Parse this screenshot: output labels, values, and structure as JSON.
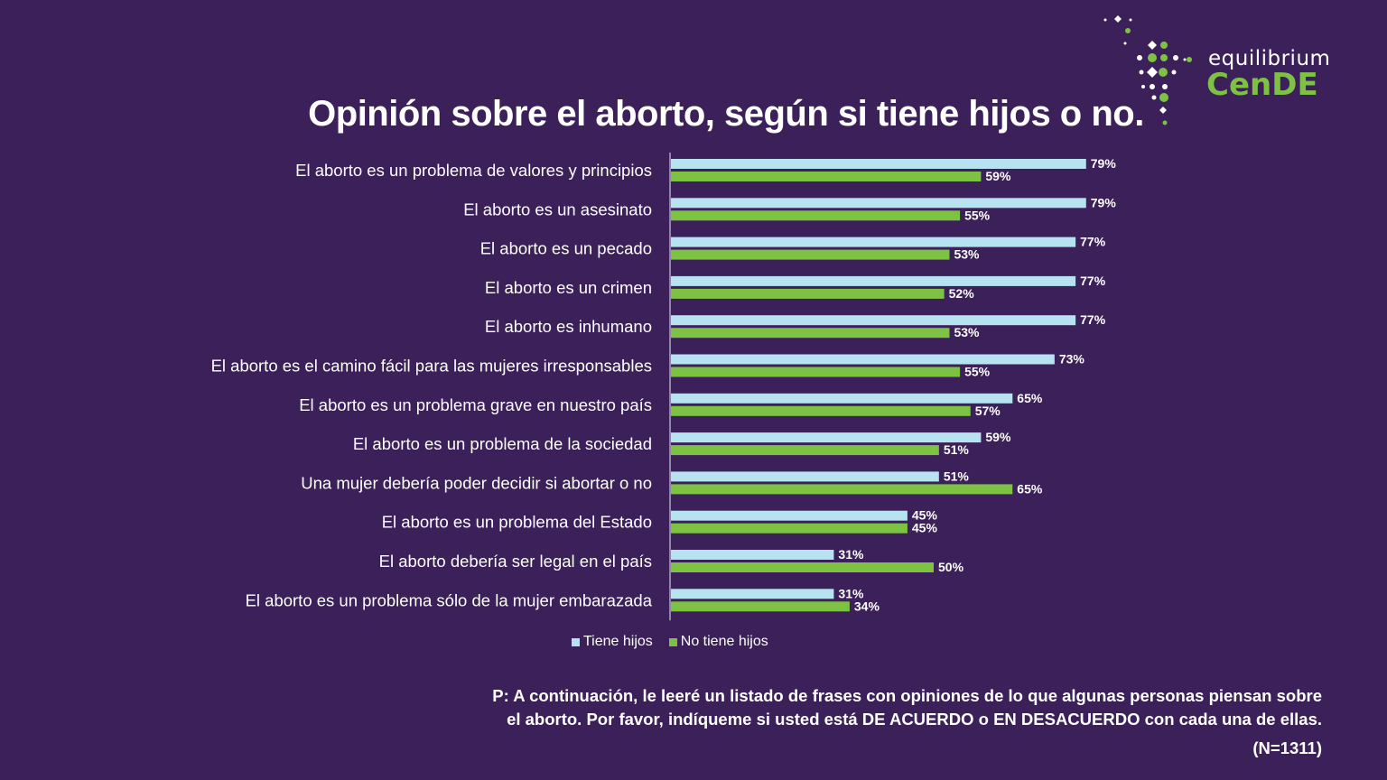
{
  "title": "Opinión sobre el aborto, según si tiene hijos o no.",
  "logo": {
    "top_text": "equilibrium",
    "bottom_text": "CenDE"
  },
  "colors": {
    "background": "#3b2059",
    "tiene_hijos": "#b7e2ef",
    "no_tiene_hijos": "#7dc242"
  },
  "chart_data": {
    "type": "bar",
    "orientation": "horizontal",
    "categories": [
      "El aborto es un problema de valores y principios",
      "El aborto es un asesinato",
      "El aborto es un pecado",
      "El aborto es un crimen",
      "El aborto es inhumano",
      "El aborto es el camino fácil para las mujeres irresponsables",
      "El aborto es un problema grave en nuestro país",
      "El aborto es un problema de la sociedad",
      "Una mujer debería poder decidir si abortar o no",
      "El aborto es un problema del Estado",
      "El aborto debería ser legal en el país",
      "El aborto es un problema sólo de la mujer embarazada"
    ],
    "series": [
      {
        "name": "Tiene hijos",
        "values": [
          79,
          79,
          77,
          77,
          77,
          73,
          65,
          59,
          51,
          45,
          31,
          31
        ],
        "labels": [
          "79%",
          "79%",
          "77%",
          "77%",
          "77%",
          "73%",
          "65%",
          "59%",
          "51%",
          "45%",
          "31%",
          "31%"
        ]
      },
      {
        "name": "No tiene hijos",
        "values": [
          59,
          55,
          53,
          52,
          53,
          55,
          57,
          51,
          65,
          45,
          50,
          34
        ],
        "labels": [
          "59%",
          "55%",
          "53%",
          "52%",
          "53%",
          "55%",
          "57%",
          "51%",
          "65%",
          "45%",
          "50%",
          "34%"
        ]
      }
    ],
    "xlim": [
      0,
      100
    ],
    "grid": false,
    "legend_position": "bottom"
  },
  "legend": {
    "tiene_hijos": "Tiene hijos",
    "no_tiene_hijos": "No tiene hijos"
  },
  "note": {
    "line1": "P: A continuación, le leeré un listado de frases con opiniones de lo que algunas personas piensan sobre",
    "line2": "el aborto. Por favor, indíqueme si usted está DE ACUERDO o EN DESACUERDO con cada una de ellas.",
    "sample": "(N=1311)"
  }
}
